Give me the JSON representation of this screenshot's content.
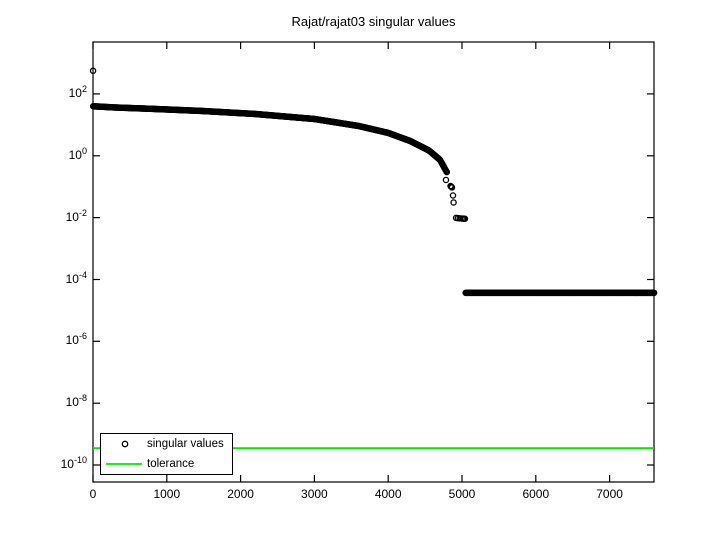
{
  "figure": {
    "background": "#ffffff"
  },
  "chart_data": {
    "type": "scatter",
    "title": "Rajat/rajat03 singular values",
    "xlabel": "",
    "ylabel": "",
    "y_scale": "log",
    "grid": false,
    "xlim": [
      0,
      7602
    ],
    "ylog_lim": [
      -10.55,
      3.68
    ],
    "x_ticks": [
      0,
      1000,
      2000,
      3000,
      4000,
      5000,
      6000,
      7000
    ],
    "y_tick_exponents": [
      2,
      0,
      -2,
      -4,
      -6,
      -8,
      -10
    ],
    "colors": {
      "data": "#000000",
      "tolerance": "#00e800",
      "axis": "#000000"
    },
    "marker": "open-circle",
    "series": [
      {
        "name": "singular values",
        "n_points": 7602,
        "outlier_point": [
          1,
          560
        ],
        "main_curve_anchors_log_interpolated": [
          [
            2,
            40
          ],
          [
            300,
            36.5
          ],
          [
            800,
            33
          ],
          [
            1500,
            28
          ],
          [
            2200,
            22.5
          ],
          [
            3000,
            15.5
          ],
          [
            3600,
            9.2
          ],
          [
            4000,
            5.5
          ],
          [
            4300,
            3.0
          ],
          [
            4550,
            1.5
          ],
          [
            4700,
            0.75
          ],
          [
            4800,
            0.28
          ]
        ],
        "drop_points": [
          [
            4783,
            0.165
          ],
          [
            4845,
            0.105
          ],
          [
            4855,
            0.1
          ],
          [
            4865,
            0.095
          ],
          [
            4878,
            0.052
          ],
          [
            4886,
            0.031
          ],
          [
            4920,
            0.0098
          ],
          [
            4945,
            0.0096
          ],
          [
            4970,
            0.0095
          ],
          [
            4995,
            0.0094
          ],
          [
            5015,
            0.0093
          ],
          [
            5030,
            0.0092
          ],
          [
            5040,
            0.0092
          ]
        ],
        "flat_tail": {
          "from_index": 5050,
          "to_index": 7602,
          "value": 3.7e-05
        }
      },
      {
        "name": "tolerance",
        "style": "horizontal-line",
        "value": 3.5e-10
      }
    ],
    "legend": {
      "position": "south-west",
      "entries": [
        {
          "label": "singular values",
          "icon": "open-circle-marker"
        },
        {
          "label": "tolerance",
          "icon": "green-line"
        }
      ]
    }
  }
}
